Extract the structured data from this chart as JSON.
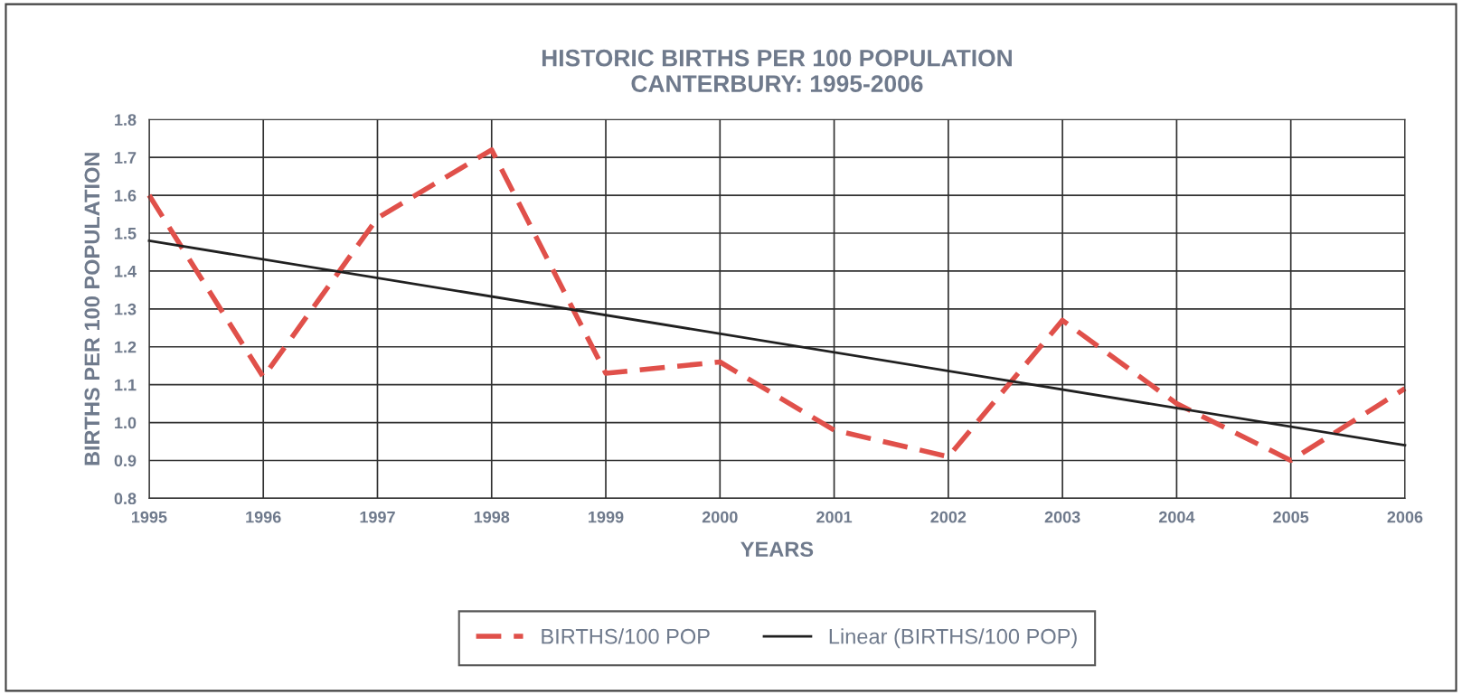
{
  "chart_data": {
    "type": "line",
    "title": "HISTORIC BIRTHS PER 100 POPULATION\nCANTERBURY: 1995-2006",
    "xlabel": "YEARS",
    "ylabel": "BIRTHS PER 100 POPULATION",
    "x": [
      1995,
      1996,
      1997,
      1998,
      1999,
      2000,
      2001,
      2002,
      2003,
      2004,
      2005,
      2006
    ],
    "series": [
      {
        "name": "BIRTHS/100 POP",
        "color": "#e0504a",
        "line_style": "dashed",
        "values": [
          1.6,
          1.12,
          1.54,
          1.72,
          1.13,
          1.16,
          0.98,
          0.91,
          1.27,
          1.05,
          0.9,
          1.09
        ]
      },
      {
        "name": "Linear (BIRTHS/100 POP)",
        "color": "#202020",
        "line_style": "solid",
        "x": [
          1995,
          2006
        ],
        "values": [
          1.48,
          0.94
        ]
      }
    ],
    "xlim": [
      1995,
      2006
    ],
    "xticks": [
      1995,
      1996,
      1997,
      1998,
      1999,
      2000,
      2001,
      2002,
      2003,
      2004,
      2005,
      2006
    ],
    "ylim": [
      0.8,
      1.8
    ],
    "yticks": [
      {
        "value": 0.8,
        "label": "0.8"
      },
      {
        "value": 0.9,
        "label": "0.9"
      },
      {
        "value": 1.0,
        "label": "1.0"
      },
      {
        "value": 1.1,
        "label": "1.1"
      },
      {
        "value": 1.2,
        "label": "1.2"
      },
      {
        "value": 1.3,
        "label": "1.3"
      },
      {
        "value": 1.4,
        "label": "1.4"
      },
      {
        "value": 1.5,
        "label": "1.5"
      },
      {
        "value": 1.6,
        "label": "1.6"
      },
      {
        "value": 1.7,
        "label": "1.7"
      },
      {
        "value": 1.8,
        "label": "1.8"
      }
    ],
    "grid": true,
    "legend": "bottom",
    "marker": "none"
  }
}
